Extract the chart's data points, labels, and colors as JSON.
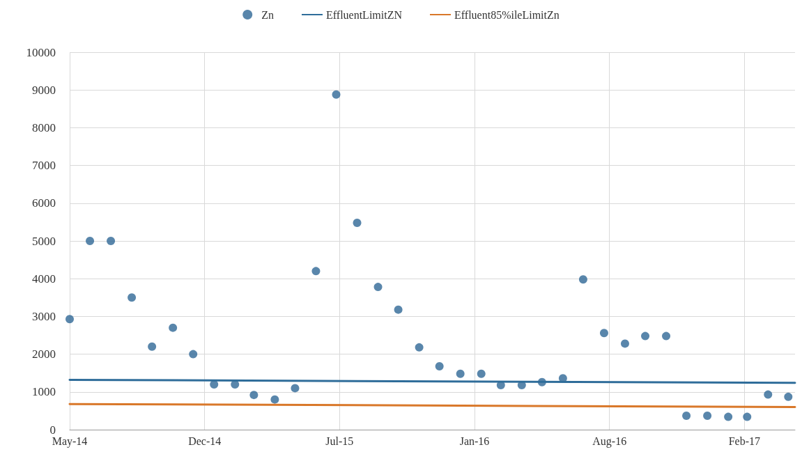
{
  "chart_data": {
    "type": "scatter",
    "xlim": [
      "2014-05-31",
      "2017-05-10"
    ],
    "xticks": [
      {
        "value": "2014-05-31",
        "label": "May-14"
      },
      {
        "value": "2014-12-17",
        "label": "Dec-14"
      },
      {
        "value": "2015-07-05",
        "label": "Jul-15"
      },
      {
        "value": "2016-01-21",
        "label": "Jan-16"
      },
      {
        "value": "2016-08-08",
        "label": "Aug-16"
      },
      {
        "value": "2017-02-24",
        "label": "Feb-17"
      }
    ],
    "ylim": [
      0,
      10000
    ],
    "yticks": [
      0,
      1000,
      2000,
      3000,
      4000,
      5000,
      6000,
      7000,
      8000,
      9000,
      10000
    ],
    "grid": true,
    "legend": "top",
    "series": [
      {
        "name": "Zn",
        "marker": "circle",
        "color": "#2f6896",
        "x": [
          "2014-05-31",
          "2014-06-30",
          "2014-07-31",
          "2014-08-31",
          "2014-09-30",
          "2014-10-31",
          "2014-11-30",
          "2014-12-31",
          "2015-01-31",
          "2015-02-28",
          "2015-03-31",
          "2015-04-30",
          "2015-05-31",
          "2015-06-30",
          "2015-07-31",
          "2015-08-31",
          "2015-09-30",
          "2015-10-31",
          "2015-11-30",
          "2015-12-31",
          "2016-01-31",
          "2016-02-29",
          "2016-03-31",
          "2016-04-30",
          "2016-05-31",
          "2016-06-30",
          "2016-07-31",
          "2016-08-31",
          "2016-09-30",
          "2016-10-31",
          "2016-11-30",
          "2016-12-31",
          "2017-01-31",
          "2017-02-28",
          "2017-03-31",
          "2017-04-30"
        ],
        "values": [
          2930,
          5000,
          5000,
          3500,
          2200,
          2700,
          2000,
          1200,
          1200,
          920,
          800,
          1100,
          4200,
          8880,
          5480,
          3780,
          3180,
          2180,
          1680,
          1480,
          1480,
          1180,
          1180,
          1260,
          1360,
          3980,
          2560,
          2280,
          2480,
          2480,
          370,
          370,
          340,
          340,
          930,
          870
        ]
      },
      {
        "name": "EffluentLimitZN",
        "type": "line",
        "marker": "none",
        "line_style": "solid",
        "color": "#2f6d9a",
        "x": [
          "2014-05-31",
          "2017-05-10"
        ],
        "values": [
          1320,
          1240
        ]
      },
      {
        "name": "Effluent85%ileLimitZn",
        "type": "line",
        "marker": "none",
        "line_style": "solid",
        "color": "#d9782a",
        "x": [
          "2014-05-31",
          "2017-05-10"
        ],
        "values": [
          680,
          600
        ]
      }
    ]
  }
}
